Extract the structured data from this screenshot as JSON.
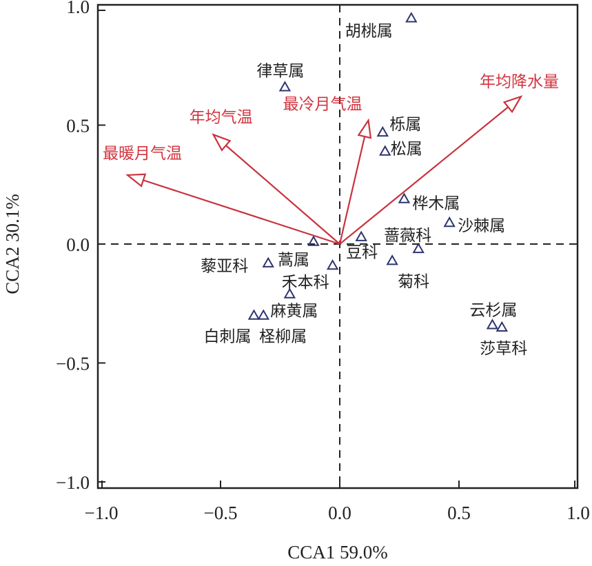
{
  "chart_data": {
    "type": "scatter",
    "subtype": "CCA biplot",
    "title": "",
    "xlabel": "CCA1 59.0%",
    "ylabel": "CCA2 30.1%",
    "xlim": [
      -1.0,
      1.0
    ],
    "ylim": [
      -1.0,
      1.0
    ],
    "xticks": [
      -1.0,
      -0.5,
      0.0,
      0.5,
      1.0
    ],
    "yticks": [
      -1.0,
      -0.5,
      0.0,
      0.5,
      1.0
    ],
    "xtick_labels": [
      "−1.0",
      "−0.5",
      "0.0",
      "0.5",
      "1.0"
    ],
    "ytick_labels": [
      "−1.0",
      "−0.5",
      "0.0",
      "0.5",
      "1.0"
    ],
    "grid": false,
    "reference_lines": {
      "x": 0,
      "y": 0,
      "style": "dashed"
    },
    "colors": {
      "points": "#2e3470",
      "arrows": "#c8323c",
      "env_text": "#d2343f",
      "axes": "#222222"
    },
    "taxa": [
      {
        "name": "胡桃属",
        "x": 0.3,
        "y": 0.95,
        "label_pos": "left"
      },
      {
        "name": "律草属",
        "x": -0.23,
        "y": 0.66,
        "label_pos": "above"
      },
      {
        "name": "栎属",
        "x": 0.18,
        "y": 0.47,
        "label_pos": "right-up"
      },
      {
        "name": "松属",
        "x": 0.19,
        "y": 0.39,
        "label_pos": "right"
      },
      {
        "name": "桦木属",
        "x": 0.27,
        "y": 0.19,
        "label_pos": "right"
      },
      {
        "name": "沙棘属",
        "x": 0.46,
        "y": 0.09,
        "label_pos": "right"
      },
      {
        "name": "蔷薇科",
        "x": 0.33,
        "y": -0.02,
        "label_pos": "above-left"
      },
      {
        "name": "豆科",
        "x": 0.09,
        "y": 0.03,
        "label_pos": "below"
      },
      {
        "name": "菊科",
        "x": 0.22,
        "y": -0.07,
        "label_pos": "below-right"
      },
      {
        "name": "蒿属",
        "x": -0.11,
        "y": 0.01,
        "label_pos": "below"
      },
      {
        "name": "藜亚科",
        "x": -0.3,
        "y": -0.08,
        "label_pos": "left"
      },
      {
        "name": "禾本科",
        "x": -0.03,
        "y": -0.09,
        "label_pos": "below-left"
      },
      {
        "name": "麻黄属",
        "x": -0.21,
        "y": -0.21,
        "label_pos": "below-right"
      },
      {
        "name": "白刺属",
        "x": -0.36,
        "y": -0.3,
        "label_pos": "below-left"
      },
      {
        "name": "柽柳属",
        "x": -0.32,
        "y": -0.3,
        "label_pos": "below-right"
      },
      {
        "name": "云杉属",
        "x": 0.64,
        "y": -0.34,
        "label_pos": "above"
      },
      {
        "name": "莎草科",
        "x": 0.68,
        "y": -0.35,
        "label_pos": "below"
      }
    ],
    "env_vectors": [
      {
        "name": "最暖月气温",
        "x": -0.89,
        "y": 0.29
      },
      {
        "name": "年均气温",
        "x": -0.53,
        "y": 0.46
      },
      {
        "name": "最冷月气温",
        "x": 0.12,
        "y": 0.52
      },
      {
        "name": "年均降水量",
        "x": 0.76,
        "y": 0.62
      }
    ]
  }
}
